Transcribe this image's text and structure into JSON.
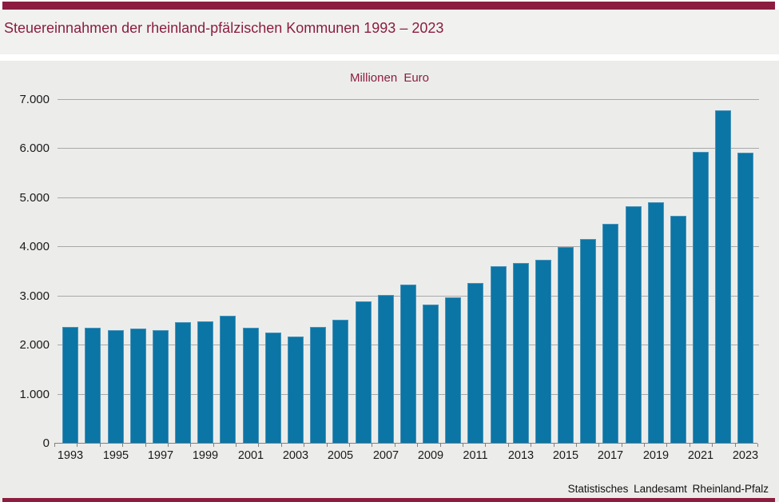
{
  "header": {
    "title": "Steuereinnahmen der rheinland-pfälzischen Kommunen 1993 – 2023"
  },
  "footer": {
    "source": "Statistisches Landesamt Rheinland-Pfalz"
  },
  "colors": {
    "accent_red": "#8c1d40",
    "bar_fill": "#0b75a5",
    "bar_edge": "#4a94ba",
    "chart_background": "#ecedeb",
    "gridline": "#a8a8a8",
    "axis": "#808080",
    "text": "#1a1a1a"
  },
  "chart_data": {
    "type": "bar",
    "title": "Steuereinnahmen der rheinland-pfälzischen Kommunen 1993 – 2023",
    "unit_label": "Millionen Euro",
    "xlabel": "",
    "ylabel": "Millionen Euro",
    "ylim": [
      0,
      7000
    ],
    "grid": "horizontal",
    "legend": "none",
    "categories": [
      1993,
      1994,
      1995,
      1996,
      1997,
      1998,
      1999,
      2000,
      2001,
      2002,
      2003,
      2004,
      2005,
      2006,
      2007,
      2008,
      2009,
      2010,
      2011,
      2012,
      2013,
      2014,
      2015,
      2016,
      2017,
      2018,
      2019,
      2020,
      2021,
      2022,
      2023
    ],
    "values": [
      2350,
      2340,
      2290,
      2320,
      2290,
      2460,
      2470,
      2580,
      2340,
      2240,
      2170,
      2360,
      2510,
      2870,
      3010,
      3220,
      2810,
      2960,
      3260,
      3590,
      3660,
      3730,
      3990,
      4150,
      4460,
      4820,
      4900,
      4610,
      5920,
      6770,
      5900
    ],
    "y_ticks": [
      0,
      1000,
      2000,
      3000,
      4000,
      5000,
      6000,
      7000
    ],
    "y_tick_labels": [
      "0",
      "1.000",
      "2.000",
      "3.000",
      "4.000",
      "5.000",
      "6.000",
      "7.000"
    ],
    "x_tick_labels": [
      "1993",
      "1995",
      "1997",
      "1999",
      "2001",
      "2003",
      "2005",
      "2007",
      "2009",
      "2011",
      "2013",
      "2015",
      "2017",
      "2019",
      "2021",
      "2023"
    ]
  }
}
